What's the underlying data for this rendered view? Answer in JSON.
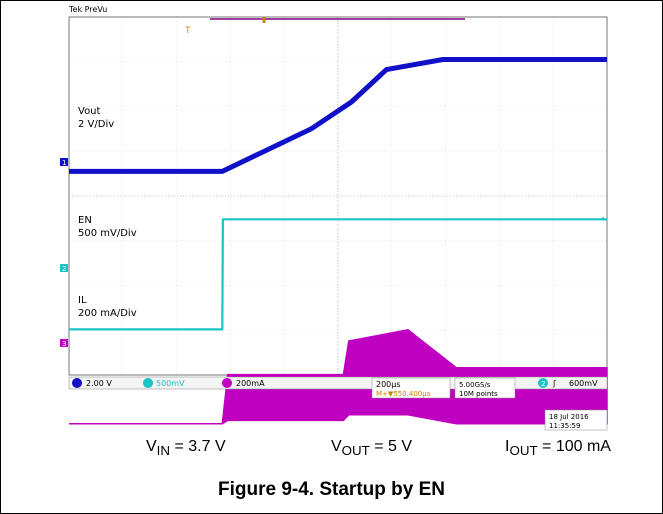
{
  "scope": {
    "status_text": "Tek PreVu",
    "channels": [
      {
        "name": "Vout",
        "scale": "2 V/Div",
        "color": "#1010c8",
        "marker": "1"
      },
      {
        "name": "EN",
        "scale": "500 mV/Div",
        "color": "#1bc4c4",
        "marker": "2"
      },
      {
        "name": "IL",
        "scale": "200 mA/Div",
        "color": "#c000c0",
        "marker": "3"
      }
    ],
    "status_bar": {
      "ch1": "2.00 V",
      "ch2": "500mV",
      "ch3": "200mA",
      "timebase": "200µs",
      "delay": "M+▼550.400µs",
      "sample_rate": "5.00GS/s",
      "record_length": "10M points",
      "trigger_channel": "2",
      "trigger_level": "600mV",
      "date": "18 Jul  2016",
      "time": "11:35:59"
    }
  },
  "conditions": {
    "vin": {
      "label": "V",
      "sub": "IN",
      "value": " = 3.7 V"
    },
    "vout": {
      "label": "V",
      "sub": "OUT",
      "value": " = 5 V"
    },
    "iout": {
      "label": "I",
      "sub": "OUT",
      "value": " = 100 mA"
    }
  },
  "caption": "Figure 9-4. Startup by EN",
  "chart_data": {
    "type": "line",
    "title": "",
    "x_unit": "µs",
    "x_divisions": 10,
    "y_divisions": 8,
    "time_per_div_us": 200,
    "grid": true,
    "series": [
      {
        "name": "Vout",
        "unit": "V",
        "volts_per_div": 2,
        "x": [
          0,
          570,
          700,
          900,
          1050,
          1180,
          1390,
          2000
        ],
        "y": [
          0,
          0,
          0.75,
          1.9,
          3.1,
          4.55,
          5.0,
          5.0
        ]
      },
      {
        "name": "EN",
        "unit": "V",
        "volts_per_div": 0.5,
        "x": [
          0,
          570,
          572,
          2000
        ],
        "y": [
          0,
          0,
          1.23,
          1.23
        ]
      },
      {
        "name": "IL",
        "unit": "mA",
        "amps_per_div_mA": 200,
        "x": [
          0,
          570,
          590,
          1020,
          1040,
          1260,
          1440,
          2000
        ],
        "y_low": [
          0,
          0,
          15,
          15,
          40,
          40,
          0,
          0
        ],
        "y_high": [
          0,
          0,
          220,
          220,
          370,
          420,
          250,
          250
        ]
      }
    ]
  }
}
